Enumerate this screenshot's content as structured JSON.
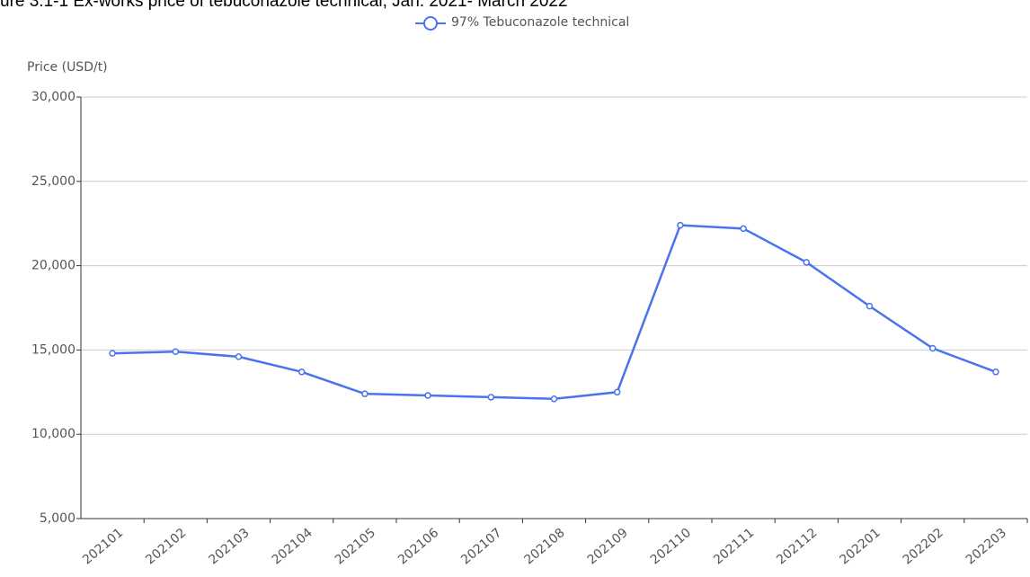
{
  "chart_data": {
    "type": "line",
    "title": "ure 3.1-1 Ex-works price of tebuconazole technical, Jan. 2021- March 2022",
    "y_label": "Price (USD/t)",
    "categories": [
      "202101",
      "202102",
      "202103",
      "202104",
      "202105",
      "202106",
      "202107",
      "202108",
      "202109",
      "202110",
      "202111",
      "202112",
      "202201",
      "202202",
      "202203"
    ],
    "series": [
      {
        "name": "97% Tebuconazole technical",
        "color": "#4a73f0",
        "values": [
          14800,
          14900,
          14600,
          13700,
          12400,
          12300,
          12200,
          12100,
          12500,
          22400,
          22200,
          20200,
          17600,
          15100,
          13700
        ]
      }
    ],
    "ylim": [
      5000,
      30000
    ],
    "yticks": [
      {
        "value": 5000,
        "label": "5,000"
      },
      {
        "value": 10000,
        "label": "10,000"
      },
      {
        "value": 15000,
        "label": "15,000"
      },
      {
        "value": 20000,
        "label": "20,000"
      },
      {
        "value": 25000,
        "label": "25,000"
      },
      {
        "value": 30000,
        "label": "30,000"
      }
    ],
    "grid": true
  }
}
